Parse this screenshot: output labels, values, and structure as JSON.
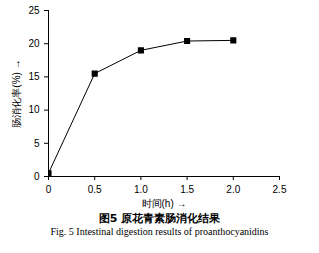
{
  "chart_data": {
    "type": "line",
    "title": "图5 原花青素肠消化结果",
    "subtitle": "Fig. 5 Intestinal digestion results of proanthocyanidins",
    "x_label": "时间(h)",
    "y_label": "肠消化率(%)",
    "x": [
      0,
      0.5,
      1.0,
      1.5,
      2.0
    ],
    "series": [
      {
        "name": "",
        "color": "#000000",
        "marker": "square",
        "line_style": "solid",
        "values": [
          0.5,
          15.5,
          19.0,
          20.4,
          20.5
        ]
      }
    ],
    "xlim": [
      0,
      2.5
    ],
    "xticks": [
      0,
      0.5,
      {
        "value": 1,
        "label": "1.0"
      },
      1.5,
      {
        "value": 2,
        "label": "2.0"
      },
      2.5
    ],
    "ylim": [
      0,
      25
    ],
    "yticks": [
      0,
      5,
      10,
      15,
      20,
      25
    ],
    "grid": false
  }
}
